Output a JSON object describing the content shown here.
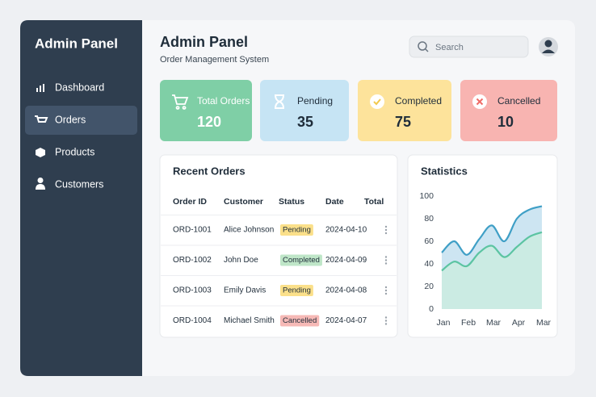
{
  "sidebar": {
    "title": "Admin Panel",
    "menu": [
      "Dashboard",
      "Orders",
      "Products",
      "Customers"
    ],
    "active": 1
  },
  "header": {
    "title": "Admin Panel",
    "subtitle": "Order Management System",
    "search_placeholder": "Search"
  },
  "stats": [
    {
      "label": "Total Orders",
      "value": 120,
      "color": "#7fcfa6",
      "text_color": "#ffffff"
    },
    {
      "label": "Pending",
      "value": 35,
      "color": "#c6e4f4",
      "text_color": "#1f2d3a"
    },
    {
      "label": "Completed",
      "value": 75,
      "color": "#fde39b",
      "text_color": "#1f2d3a"
    },
    {
      "label": "Cancelled",
      "value": 10,
      "color": "#f8b4b1",
      "text_color": "#1f2d3a"
    }
  ],
  "orders": {
    "title": "Recent Orders",
    "columns": [
      "Order ID",
      "Customer",
      "Status",
      "Date",
      "Total"
    ],
    "rows": [
      {
        "id": "ORD-1001",
        "customer": "Alice Johnson",
        "status": "Pending",
        "status_color": "#fbe08a",
        "date": "2024-04-10"
      },
      {
        "id": "ORD-1002",
        "customer": "John Doe",
        "status": "Completed",
        "status_color": "#bfe6c8",
        "date": "2024-04-09"
      },
      {
        "id": "ORD-1003",
        "customer": "Emily Davis",
        "status": "Pending",
        "status_color": "#fbe08a",
        "date": "2024-04-08"
      },
      {
        "id": "ORD-1004",
        "customer": "Michael Smith",
        "status": "Cancelled",
        "status_color": "#f6b9b6",
        "date": "2024-04-07"
      }
    ]
  },
  "chart_data": {
    "type": "area",
    "title": "Statistics",
    "categories": [
      "Jan",
      null,
      "Feb",
      null,
      "Mar",
      null,
      "Apr",
      null,
      "Mar"
    ],
    "series": [
      {
        "color": "#3f9fc6",
        "fill": "#bcdcee",
        "values": [
          50,
          60,
          48,
          62,
          74,
          60,
          80,
          88,
          91
        ]
      },
      {
        "color": "#5cc4a2",
        "fill": "#c9ecde",
        "values": [
          34,
          42,
          38,
          50,
          56,
          46,
          55,
          64,
          68
        ]
      }
    ],
    "ylim": [
      0,
      100
    ],
    "yticks": [
      0,
      20,
      40,
      60,
      80,
      100
    ]
  }
}
